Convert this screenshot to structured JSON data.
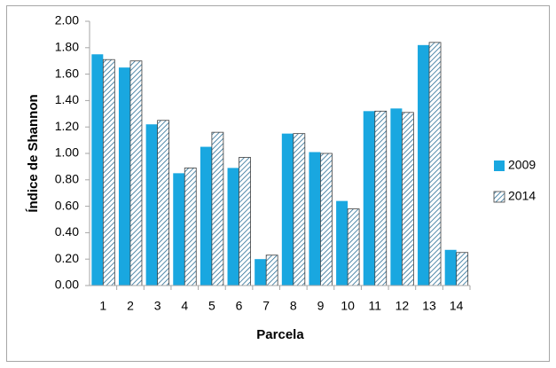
{
  "chart_data": {
    "type": "bar",
    "x_label": "Parcela",
    "y_label": "Índice de Shannon",
    "categories": [
      "1",
      "2",
      "3",
      "4",
      "5",
      "6",
      "7",
      "8",
      "9",
      "10",
      "11",
      "12",
      "13",
      "14"
    ],
    "series": [
      {
        "name": "2009",
        "color": "#19a7e0",
        "hatch": false,
        "values": [
          1.75,
          1.65,
          1.22,
          0.85,
          1.05,
          0.89,
          0.2,
          1.15,
          1.01,
          0.64,
          1.32,
          1.34,
          1.82,
          0.27
        ]
      },
      {
        "name": "2014",
        "color": "#2a6f97",
        "hatch": true,
        "values": [
          1.71,
          1.7,
          1.25,
          0.89,
          1.16,
          0.97,
          0.23,
          1.15,
          1.0,
          0.58,
          1.32,
          1.31,
          1.84,
          0.25
        ]
      }
    ],
    "ylim": [
      0,
      2
    ],
    "yticks": [
      {
        "value": 0,
        "label": "0.00"
      },
      {
        "value": 0.2,
        "label": "0.20"
      },
      {
        "value": 0.4,
        "label": "0.40"
      },
      {
        "value": 0.6,
        "label": "0.60"
      },
      {
        "value": 0.8,
        "label": "0.80"
      },
      {
        "value": 1,
        "label": "1.00"
      },
      {
        "value": 1.2,
        "label": "1.20"
      },
      {
        "value": 1.4,
        "label": "1.40"
      },
      {
        "value": 1.6,
        "label": "1.60"
      },
      {
        "value": 1.8,
        "label": "1.80"
      },
      {
        "value": 2,
        "label": "2.00"
      }
    ],
    "grid": false,
    "legend": "right"
  }
}
